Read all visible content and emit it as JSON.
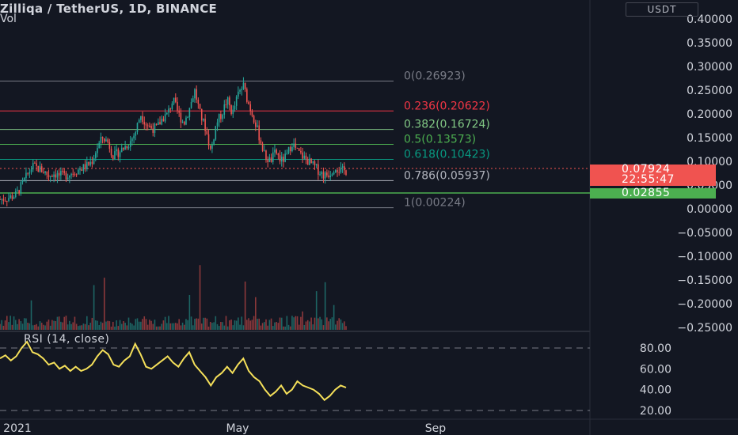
{
  "header": {
    "title": "Zilliqa / TetherUS, 1D, BINANCE",
    "volume_label": "Vol",
    "currency": "USDT"
  },
  "price_axis": {
    "labels": [
      "0.40000",
      "0.35000",
      "0.30000",
      "0.25000",
      "0.20000",
      "0.15000",
      "0.10000",
      "0.05000",
      "0.00000",
      "−0.05000",
      "−0.10000",
      "−0.15000",
      "−0.20000",
      "−0.25000"
    ]
  },
  "fib_levels": [
    {
      "label": "0(0.26923)",
      "value": 0.26923,
      "color": "#787b86"
    },
    {
      "label": "0.236(0.20622)",
      "value": 0.20622,
      "color": "#f23645"
    },
    {
      "label": "0.382(0.16724)",
      "value": 0.16724,
      "color": "#81c784"
    },
    {
      "label": "0.5(0.13573)",
      "value": 0.13573,
      "color": "#4caf50"
    },
    {
      "label": "0.618(0.10423)",
      "value": 0.10423,
      "color": "#089981"
    },
    {
      "label": "0.786(0.05937)",
      "value": 0.05937,
      "color": "#b2b5be"
    },
    {
      "label": "1(0.00224)",
      "value": 0.00224,
      "color": "#787b86"
    }
  ],
  "current_price": {
    "value": "0.07924",
    "countdown": "22:55:47",
    "color": "#f05350"
  },
  "low_tag": {
    "value": "0.02855",
    "color": "#4caf50"
  },
  "rsi": {
    "label": "RSI (14, close)",
    "axis_labels": [
      "80.00",
      "60.00",
      "40.00",
      "20.00"
    ],
    "upper": 80,
    "lower": 20
  },
  "time_axis": {
    "labels": [
      "2021",
      "May",
      "Sep"
    ]
  },
  "colors": {
    "up": "#26a69a",
    "down": "#ef5350",
    "rsi_line": "#f5e05a",
    "background": "#131722"
  },
  "chart_data": {
    "type": "candlestick",
    "title": "Zilliqa / TetherUS, 1D, BINANCE",
    "ylim": [
      -0.25,
      0.4
    ],
    "x_labels": [
      "2021",
      "May",
      "Sep"
    ],
    "approx_close_path": [
      0.02,
      0.022,
      0.025,
      0.03,
      0.05,
      0.07,
      0.09,
      0.085,
      0.08,
      0.07,
      0.075,
      0.07,
      0.07,
      0.075,
      0.08,
      0.085,
      0.09,
      0.1,
      0.13,
      0.15,
      0.14,
      0.11,
      0.12,
      0.13,
      0.14,
      0.16,
      0.2,
      0.18,
      0.17,
      0.17,
      0.19,
      0.2,
      0.23,
      0.2,
      0.18,
      0.21,
      0.25,
      0.2,
      0.17,
      0.12,
      0.18,
      0.2,
      0.23,
      0.2,
      0.24,
      0.26,
      0.22,
      0.19,
      0.15,
      0.11,
      0.1,
      0.12,
      0.1,
      0.11,
      0.14,
      0.12,
      0.11,
      0.1,
      0.09,
      0.08,
      0.07,
      0.075,
      0.09,
      0.08,
      0.08
    ],
    "rsi_path": [
      70,
      73,
      68,
      72,
      80,
      86,
      76,
      74,
      70,
      64,
      66,
      60,
      63,
      58,
      62,
      58,
      60,
      64,
      72,
      78,
      74,
      64,
      62,
      68,
      72,
      84,
      74,
      62,
      60,
      64,
      68,
      72,
      66,
      62,
      70,
      76,
      64,
      58,
      52,
      44,
      52,
      56,
      62,
      56,
      64,
      70,
      58,
      52,
      48,
      40,
      34,
      38,
      44,
      36,
      40,
      48,
      44,
      42,
      40,
      36,
      30,
      34,
      40,
      44,
      42
    ]
  }
}
